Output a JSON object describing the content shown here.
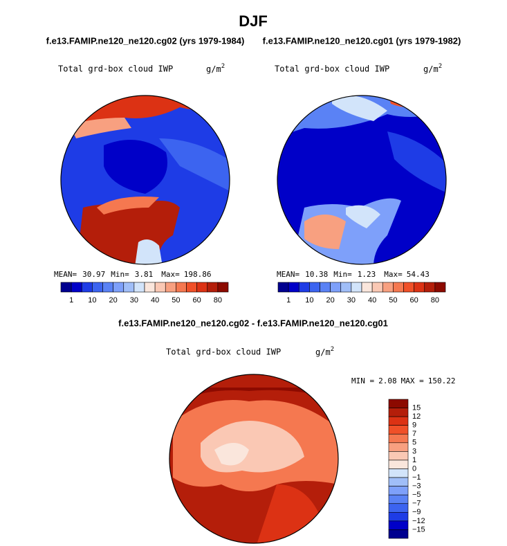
{
  "title": "DJF",
  "subtitle_left": "f.e13.FAMIP.ne120_ne120.cg02 (yrs 1979-1984)",
  "subtitle_right": "f.e13.FAMIP.ne120_ne120.cg01 (yrs 1979-1982)",
  "panels": [
    {
      "header": "Total grd-box cloud IWP",
      "units": "g/m",
      "units_exp": "2",
      "stats": {
        "mean_label": "MEAN=",
        "mean": 30.97,
        "min_label": "Min=",
        "min": 3.81,
        "max_label": "Max=",
        "max": 198.86
      },
      "colorbar": [
        "1",
        "10",
        "20",
        "30",
        "40",
        "50",
        "60",
        "80"
      ]
    },
    {
      "header": "Total grd-box cloud IWP",
      "units": "g/m",
      "units_exp": "2",
      "stats": {
        "mean_label": "MEAN=",
        "mean": 10.38,
        "min_label": "Min=",
        "min": 1.23,
        "max_label": "Max=",
        "max": 54.43
      },
      "colorbar": [
        "1",
        "10",
        "20",
        "30",
        "40",
        "50",
        "60",
        "80"
      ]
    }
  ],
  "diff_title": "f.e13.FAMIP.ne120_ne120.cg02 - f.e13.FAMIP.ne120_ne120.cg01",
  "diff_panel": {
    "header": "Total grd-box cloud IWP",
    "units": "g/m",
    "units_exp": "2",
    "stats": {
      "min_label": "MIN =",
      "min": 2.08,
      "max_label": "MAX =",
      "max": 150.22
    },
    "colorbar": [
      "15",
      "12",
      "9",
      "7",
      "5",
      "3",
      "1",
      "0",
      "−1",
      "−3",
      "−5",
      "−7",
      "−9",
      "−12",
      "−15"
    ]
  }
}
